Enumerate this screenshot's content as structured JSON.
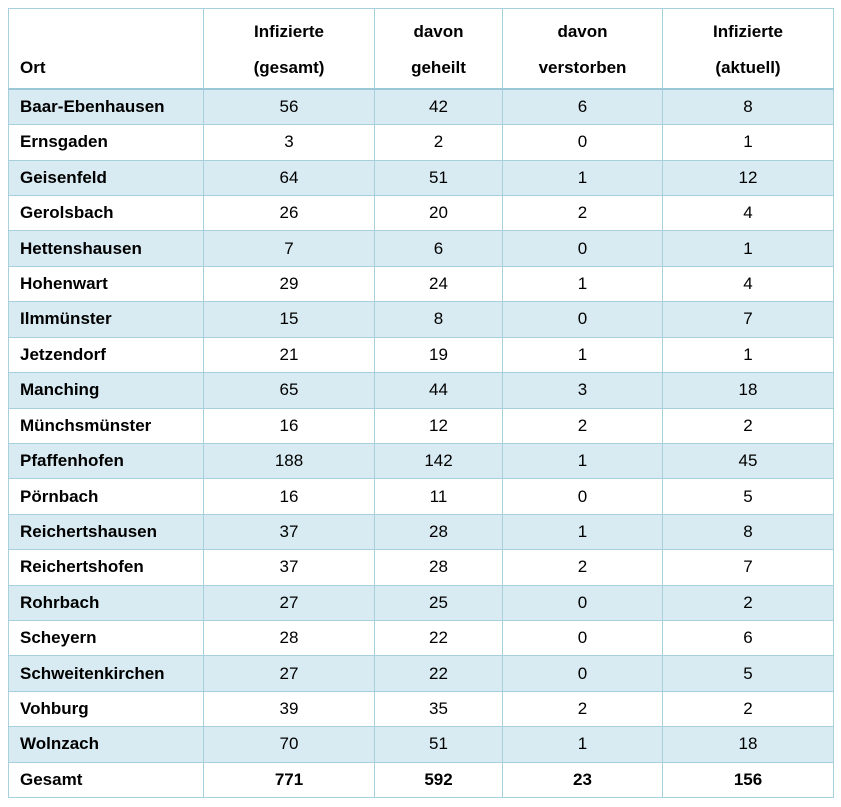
{
  "page": {
    "background": "#ffffff"
  },
  "table": {
    "colors": {
      "row-alt": "#d8ebf2",
      "border": "#a8cfdc",
      "header-sep": "#9cc7d6",
      "text": "#000000",
      "header-bg": "#ffffff"
    },
    "columns": [
      {
        "id": "ort",
        "header_line1": "",
        "header_line2": "Ort"
      },
      {
        "id": "infizierte_gesamt",
        "header_line1": "Infizierte",
        "header_line2": "(gesamt)"
      },
      {
        "id": "davon_geheilt",
        "header_line1": "davon",
        "header_line2": "geheilt"
      },
      {
        "id": "davon_verstorben",
        "header_line1": "davon",
        "header_line2": "verstorben"
      },
      {
        "id": "infizierte_aktuell",
        "header_line1": "Infizierte",
        "header_line2": "(aktuell)"
      }
    ],
    "rows": [
      {
        "ort": "Baar-Ebenhausen",
        "gesamt": 56,
        "geheilt": 42,
        "verstorben": 6,
        "aktuell": 8
      },
      {
        "ort": "Ernsgaden",
        "gesamt": 3,
        "geheilt": 2,
        "verstorben": 0,
        "aktuell": 1
      },
      {
        "ort": "Geisenfeld",
        "gesamt": 64,
        "geheilt": 51,
        "verstorben": 1,
        "aktuell": 12
      },
      {
        "ort": "Gerolsbach",
        "gesamt": 26,
        "geheilt": 20,
        "verstorben": 2,
        "aktuell": 4
      },
      {
        "ort": "Hettenshausen",
        "gesamt": 7,
        "geheilt": 6,
        "verstorben": 0,
        "aktuell": 1
      },
      {
        "ort": "Hohenwart",
        "gesamt": 29,
        "geheilt": 24,
        "verstorben": 1,
        "aktuell": 4
      },
      {
        "ort": "Ilmmünster",
        "gesamt": 15,
        "geheilt": 8,
        "verstorben": 0,
        "aktuell": 7
      },
      {
        "ort": "Jetzendorf",
        "gesamt": 21,
        "geheilt": 19,
        "verstorben": 1,
        "aktuell": 1
      },
      {
        "ort": "Manching",
        "gesamt": 65,
        "geheilt": 44,
        "verstorben": 3,
        "aktuell": 18
      },
      {
        "ort": "Münchsmünster",
        "gesamt": 16,
        "geheilt": 12,
        "verstorben": 2,
        "aktuell": 2
      },
      {
        "ort": "Pfaffenhofen",
        "gesamt": 188,
        "geheilt": 142,
        "verstorben": 1,
        "aktuell": 45
      },
      {
        "ort": "Pörnbach",
        "gesamt": 16,
        "geheilt": 11,
        "verstorben": 0,
        "aktuell": 5
      },
      {
        "ort": "Reichertshausen",
        "gesamt": 37,
        "geheilt": 28,
        "verstorben": 1,
        "aktuell": 8
      },
      {
        "ort": "Reichertshofen",
        "gesamt": 37,
        "geheilt": 28,
        "verstorben": 2,
        "aktuell": 7
      },
      {
        "ort": "Rohrbach",
        "gesamt": 27,
        "geheilt": 25,
        "verstorben": 0,
        "aktuell": 2
      },
      {
        "ort": "Scheyern",
        "gesamt": 28,
        "geheilt": 22,
        "verstorben": 0,
        "aktuell": 6
      },
      {
        "ort": "Schweitenkirchen",
        "gesamt": 27,
        "geheilt": 22,
        "verstorben": 0,
        "aktuell": 5
      },
      {
        "ort": "Vohburg",
        "gesamt": 39,
        "geheilt": 35,
        "verstorben": 2,
        "aktuell": 2
      },
      {
        "ort": "Wolnzach",
        "gesamt": 70,
        "geheilt": 51,
        "verstorben": 1,
        "aktuell": 18
      }
    ],
    "total_row": {
      "ort": "Gesamt",
      "gesamt": 771,
      "geheilt": 592,
      "verstorben": 23,
      "aktuell": 156
    }
  },
  "chart_data": {
    "type": "table",
    "title": "",
    "columns": [
      "Ort",
      "Infizierte (gesamt)",
      "davon geheilt",
      "davon verstorben",
      "Infizierte (aktuell)"
    ],
    "rows": [
      [
        "Baar-Ebenhausen",
        56,
        42,
        6,
        8
      ],
      [
        "Ernsgaden",
        3,
        2,
        0,
        1
      ],
      [
        "Geisenfeld",
        64,
        51,
        1,
        12
      ],
      [
        "Gerolsbach",
        26,
        20,
        2,
        4
      ],
      [
        "Hettenshausen",
        7,
        6,
        0,
        1
      ],
      [
        "Hohenwart",
        29,
        24,
        1,
        4
      ],
      [
        "Ilmmünster",
        15,
        8,
        0,
        7
      ],
      [
        "Jetzendorf",
        21,
        19,
        1,
        1
      ],
      [
        "Manching",
        65,
        44,
        3,
        18
      ],
      [
        "Münchsmünster",
        16,
        12,
        2,
        2
      ],
      [
        "Pfaffenhofen",
        188,
        142,
        1,
        45
      ],
      [
        "Pörnbach",
        16,
        11,
        0,
        5
      ],
      [
        "Reichertshausen",
        37,
        28,
        1,
        8
      ],
      [
        "Reichertshofen",
        37,
        28,
        2,
        7
      ],
      [
        "Rohrbach",
        27,
        25,
        0,
        2
      ],
      [
        "Scheyern",
        28,
        22,
        0,
        6
      ],
      [
        "Schweitenkirchen",
        27,
        22,
        0,
        5
      ],
      [
        "Vohburg",
        39,
        35,
        2,
        2
      ],
      [
        "Wolnzach",
        70,
        51,
        1,
        18
      ],
      [
        "Gesamt",
        771,
        592,
        23,
        156
      ]
    ],
    "layout": {
      "striped": true,
      "stripe_color": "#d8ebf2",
      "border_color": "#a8cfdc",
      "total_row_bold": true
    }
  }
}
